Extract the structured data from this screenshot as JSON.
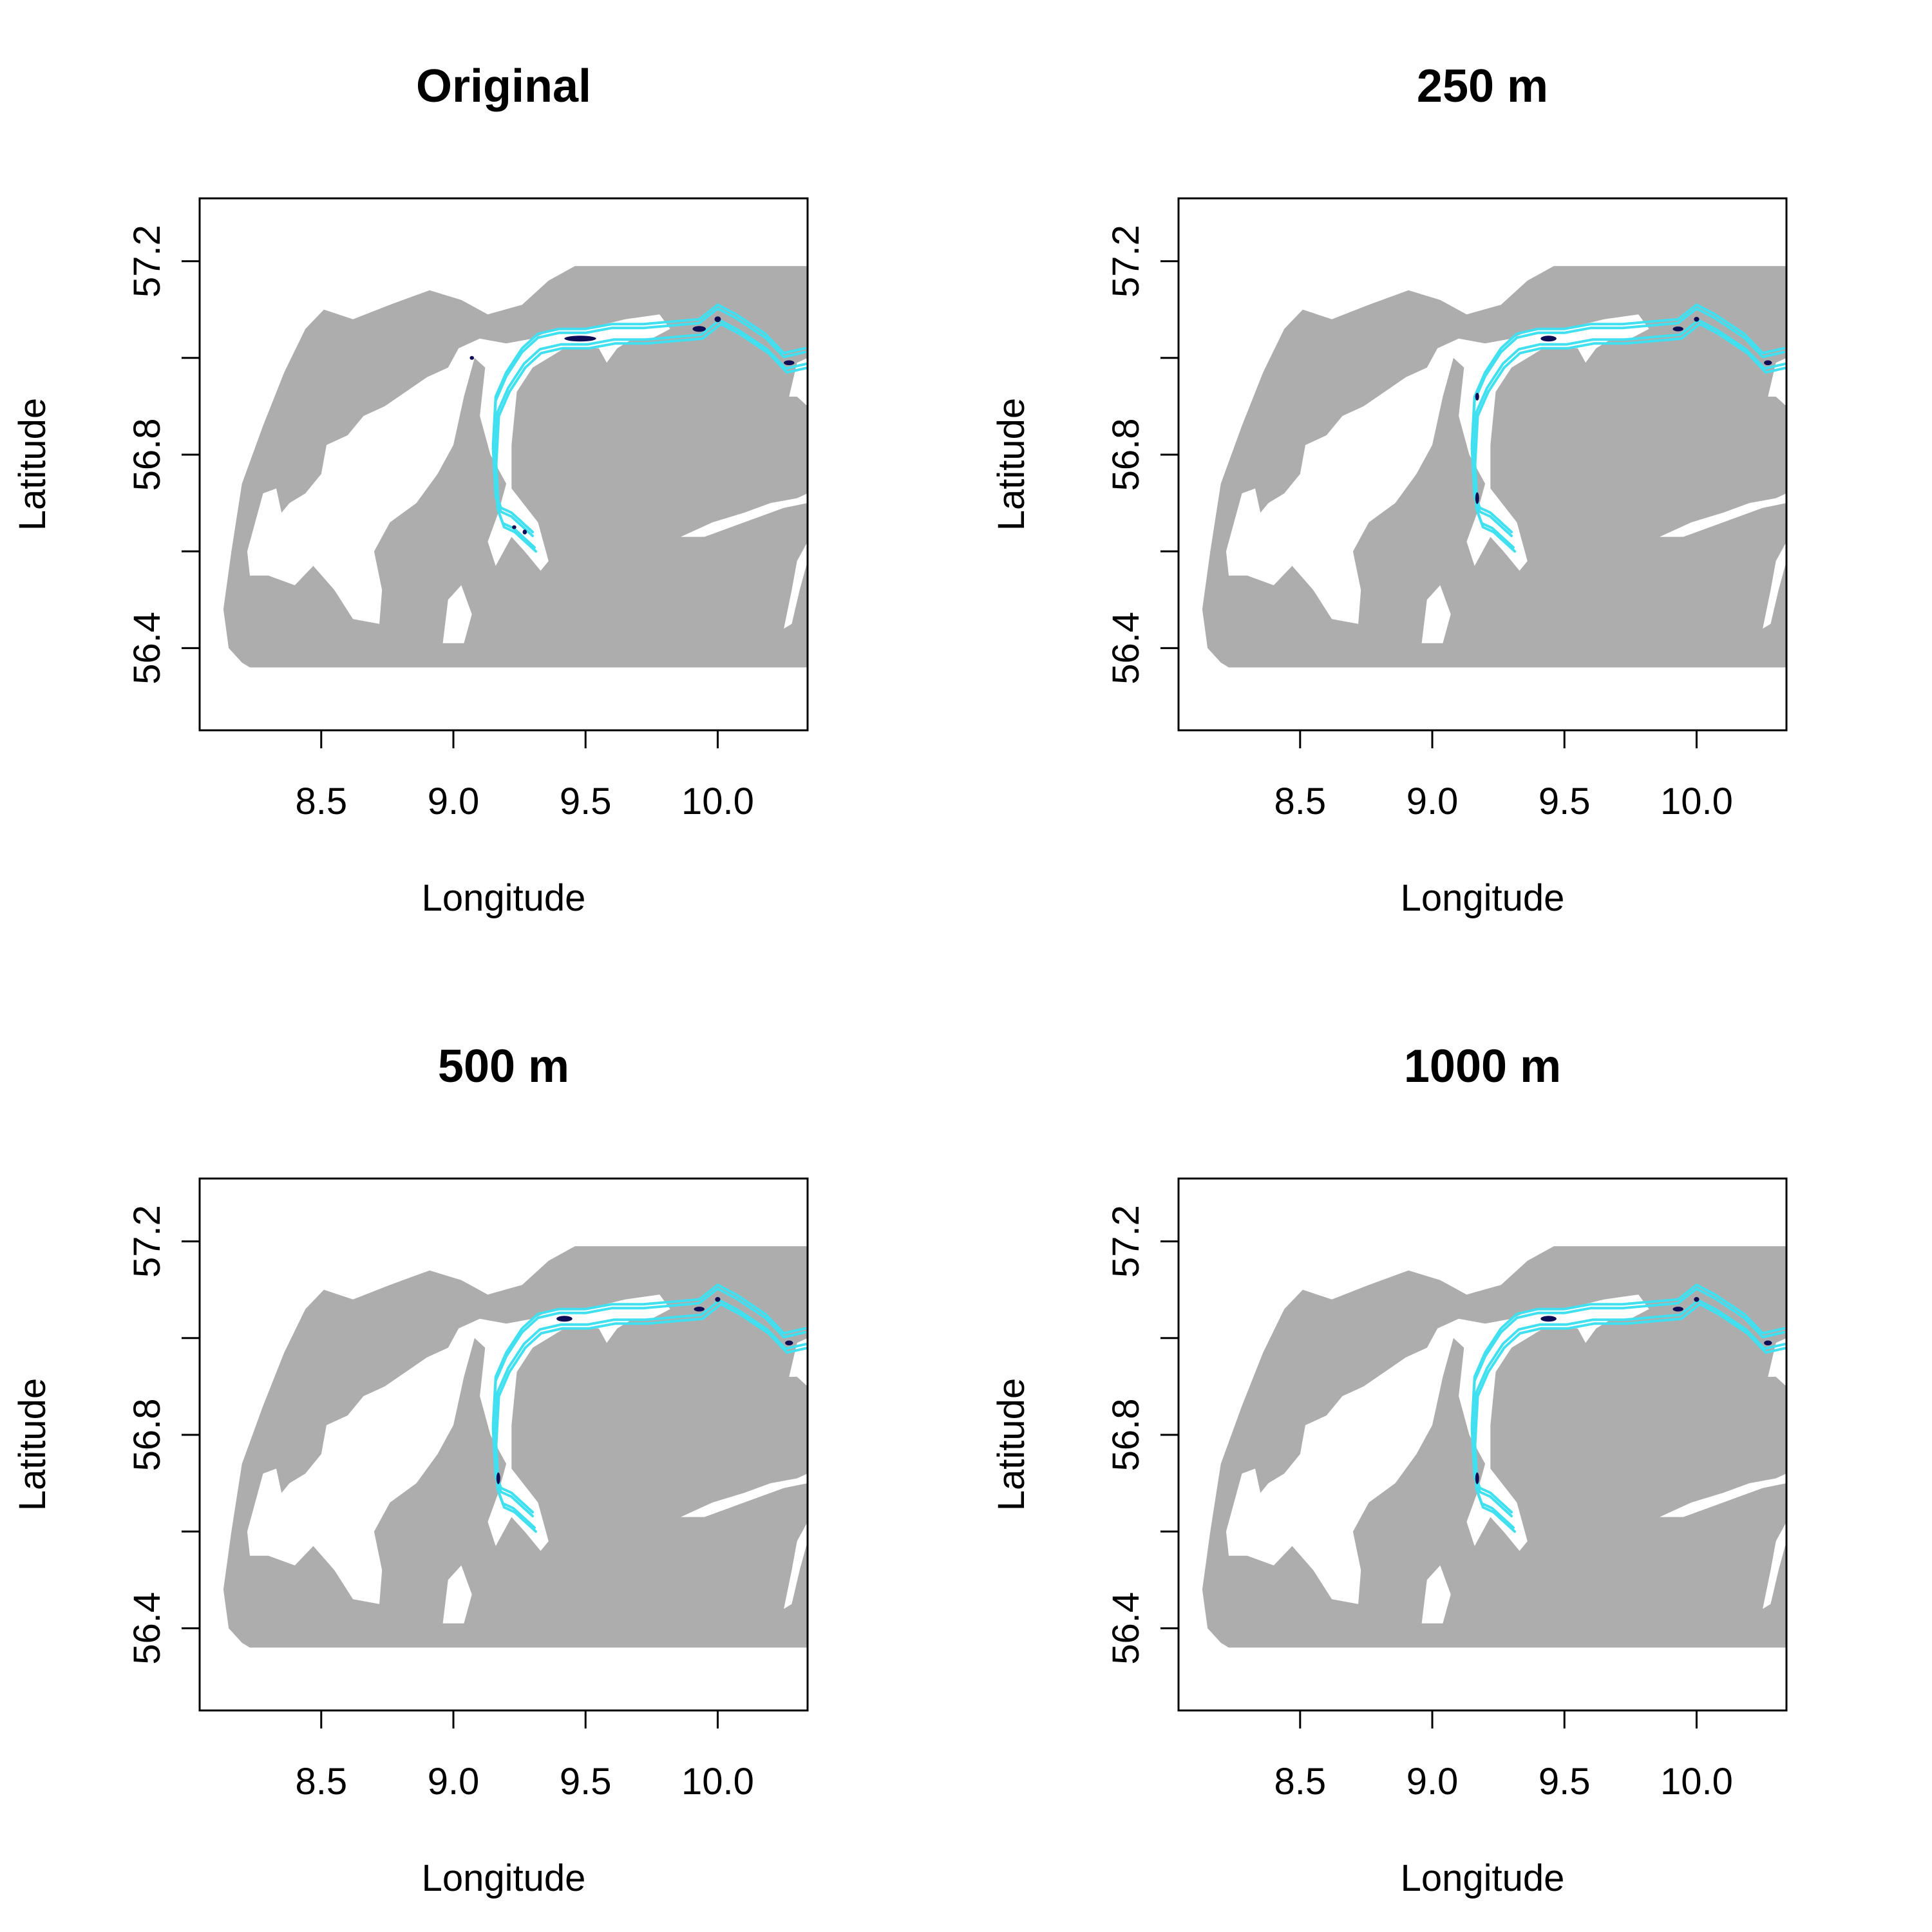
{
  "figure": {
    "background": "#ffffff",
    "land_color": "#adadad",
    "route_color": "#40e0f0",
    "hotspot_color": "#0d0d55"
  },
  "chart_data": [
    {
      "type": "map",
      "title": "Original",
      "xlabel": "Longitude",
      "ylabel": "Latitude",
      "xlim": [
        8.04,
        10.34
      ],
      "ylim": [
        56.23,
        57.33
      ],
      "xticks": [
        8.5,
        9.0,
        9.5,
        10.0
      ],
      "xtick_labels": [
        "8.5",
        "9.0",
        "9.5",
        "10.0"
      ],
      "yticks": [
        56.4,
        56.6,
        56.8,
        57.0,
        57.2
      ],
      "ytick_labels": [
        "56.4",
        "",
        "56.8",
        "",
        "57.2"
      ],
      "hotspots": [
        {
          "lon": 9.48,
          "lat": 57.04,
          "rx": 0.06,
          "ry": 0.006
        },
        {
          "lon": 9.93,
          "lat": 57.06,
          "rx": 0.025,
          "ry": 0.006
        },
        {
          "lon": 10.0,
          "lat": 57.08,
          "rx": 0.012,
          "ry": 0.006
        },
        {
          "lon": 10.27,
          "lat": 56.99,
          "rx": 0.02,
          "ry": 0.005
        },
        {
          "lon": 9.23,
          "lat": 56.65,
          "rx": 0.008,
          "ry": 0.004
        },
        {
          "lon": 9.27,
          "lat": 56.64,
          "rx": 0.008,
          "ry": 0.005
        },
        {
          "lon": 9.07,
          "lat": 57.0,
          "rx": 0.008,
          "ry": 0.004
        }
      ]
    },
    {
      "type": "map",
      "title": "250 m",
      "xlabel": "Longitude",
      "ylabel": "Latitude",
      "xlim": [
        8.04,
        10.34
      ],
      "ylim": [
        56.23,
        57.33
      ],
      "xticks": [
        8.5,
        9.0,
        9.5,
        10.0
      ],
      "xtick_labels": [
        "8.5",
        "9.0",
        "9.5",
        "10.0"
      ],
      "yticks": [
        56.4,
        56.6,
        56.8,
        57.0,
        57.2
      ],
      "ytick_labels": [
        "56.4",
        "",
        "56.8",
        "",
        "57.2"
      ],
      "hotspots": [
        {
          "lon": 9.44,
          "lat": 57.04,
          "rx": 0.03,
          "ry": 0.006
        },
        {
          "lon": 9.93,
          "lat": 57.06,
          "rx": 0.02,
          "ry": 0.005
        },
        {
          "lon": 10.0,
          "lat": 57.08,
          "rx": 0.01,
          "ry": 0.005
        },
        {
          "lon": 10.27,
          "lat": 56.99,
          "rx": 0.015,
          "ry": 0.005
        },
        {
          "lon": 9.17,
          "lat": 56.71,
          "rx": 0.006,
          "ry": 0.012
        },
        {
          "lon": 9.17,
          "lat": 56.92,
          "rx": 0.005,
          "ry": 0.008
        }
      ]
    },
    {
      "type": "map",
      "title": "500 m",
      "xlabel": "Longitude",
      "ylabel": "Latitude",
      "xlim": [
        8.04,
        10.34
      ],
      "ylim": [
        56.23,
        57.33
      ],
      "xticks": [
        8.5,
        9.0,
        9.5,
        10.0
      ],
      "xtick_labels": [
        "8.5",
        "9.0",
        "9.5",
        "10.0"
      ],
      "yticks": [
        56.4,
        56.6,
        56.8,
        57.0,
        57.2
      ],
      "ytick_labels": [
        "56.4",
        "",
        "56.8",
        "",
        "57.2"
      ],
      "hotspots": [
        {
          "lon": 9.42,
          "lat": 57.04,
          "rx": 0.03,
          "ry": 0.006
        },
        {
          "lon": 9.93,
          "lat": 57.06,
          "rx": 0.02,
          "ry": 0.005
        },
        {
          "lon": 10.0,
          "lat": 57.08,
          "rx": 0.01,
          "ry": 0.005
        },
        {
          "lon": 10.27,
          "lat": 56.99,
          "rx": 0.015,
          "ry": 0.005
        },
        {
          "lon": 9.17,
          "lat": 56.71,
          "rx": 0.006,
          "ry": 0.012
        }
      ]
    },
    {
      "type": "map",
      "title": "1000 m",
      "xlabel": "Longitude",
      "ylabel": "Latitude",
      "xlim": [
        8.04,
        10.34
      ],
      "ylim": [
        56.23,
        57.33
      ],
      "xticks": [
        8.5,
        9.0,
        9.5,
        10.0
      ],
      "xtick_labels": [
        "8.5",
        "9.0",
        "9.5",
        "10.0"
      ],
      "yticks": [
        56.4,
        56.6,
        56.8,
        57.0,
        57.2
      ],
      "ytick_labels": [
        "56.4",
        "",
        "56.8",
        "",
        "57.2"
      ],
      "hotspots": [
        {
          "lon": 9.44,
          "lat": 57.04,
          "rx": 0.03,
          "ry": 0.006
        },
        {
          "lon": 9.93,
          "lat": 57.06,
          "rx": 0.02,
          "ry": 0.005
        },
        {
          "lon": 10.0,
          "lat": 57.08,
          "rx": 0.01,
          "ry": 0.005
        },
        {
          "lon": 10.27,
          "lat": 56.99,
          "rx": 0.015,
          "ry": 0.005
        },
        {
          "lon": 9.17,
          "lat": 56.71,
          "rx": 0.006,
          "ry": 0.012
        }
      ]
    }
  ]
}
